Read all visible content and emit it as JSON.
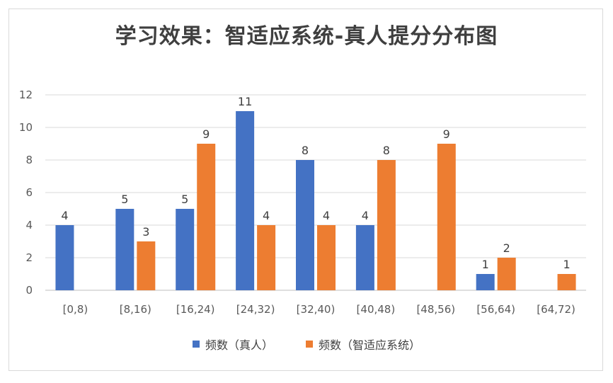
{
  "chart_data": {
    "type": "bar",
    "title": "学习效果：智适应系统-真人提分分布图",
    "categories": [
      "[0,8)",
      "[8,16)",
      "[16,24)",
      "[24,32)",
      "[32,40)",
      "[40,48)",
      "[48,56)",
      "[56,64)",
      "[64,72)"
    ],
    "series": [
      {
        "name": "频数（真人）",
        "values": [
          4,
          5,
          5,
          11,
          8,
          4,
          0,
          1,
          0
        ],
        "labels": [
          "4",
          "5",
          "5",
          "11",
          "8",
          "4",
          "",
          "1",
          ""
        ],
        "color": "#4472c4"
      },
      {
        "name": "频数（智适应系统）",
        "values": [
          0,
          3,
          9,
          4,
          4,
          8,
          9,
          2,
          1
        ],
        "labels": [
          "",
          "3",
          "9",
          "4",
          "4",
          "8",
          "9",
          "2",
          "1"
        ],
        "color": "#ed7d31"
      }
    ],
    "ylim": [
      0,
      12
    ],
    "yticks": [
      "0",
      "2",
      "4",
      "6",
      "8",
      "10",
      "12"
    ],
    "grid": true,
    "legend": "bottom"
  }
}
